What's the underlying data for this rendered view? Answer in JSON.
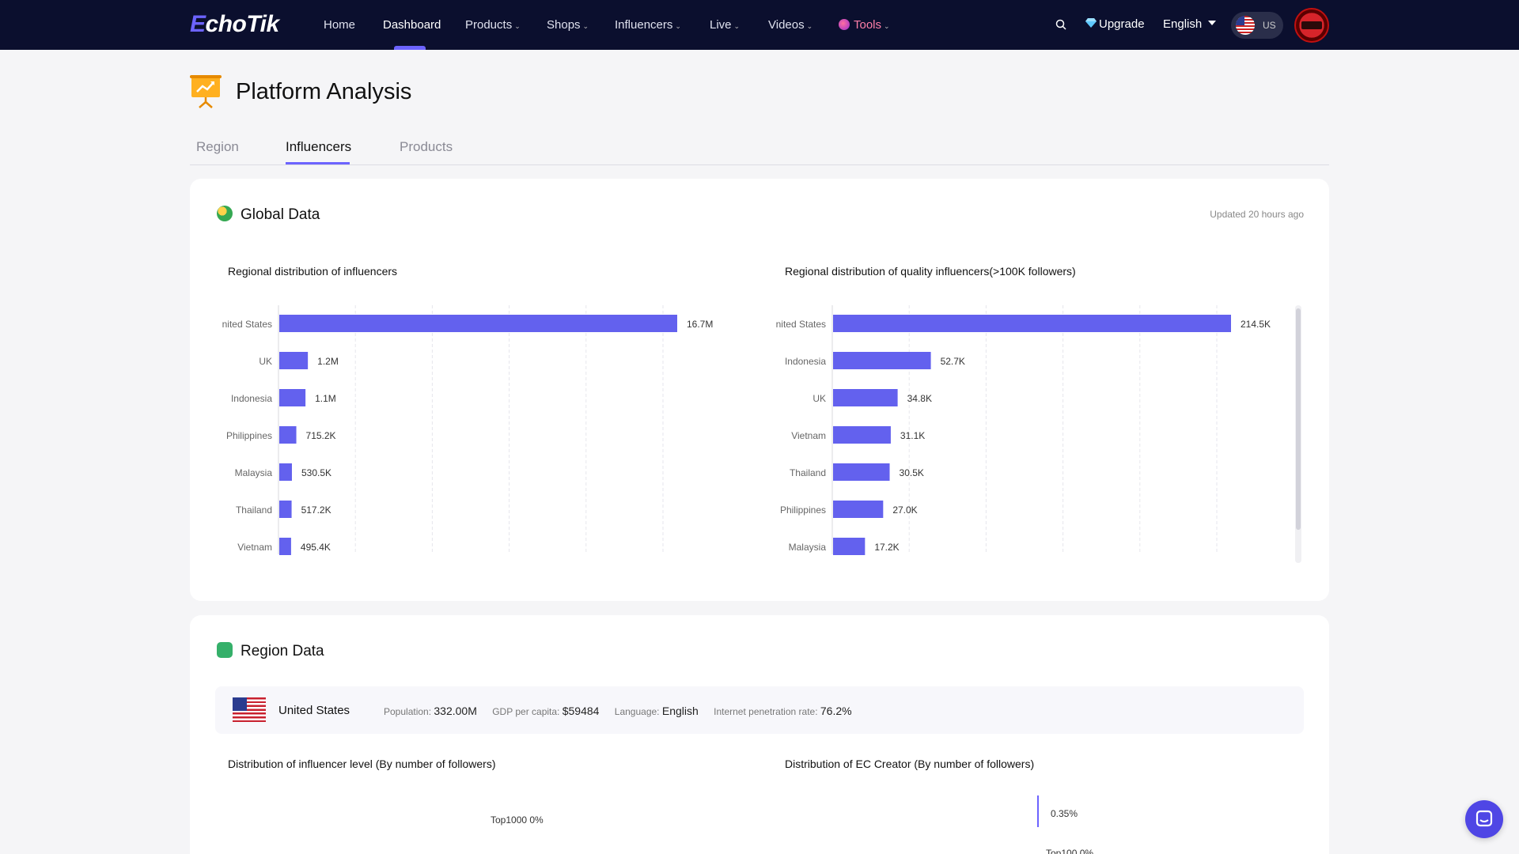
{
  "nav": {
    "logo_e": "E",
    "logo_rest": "choTik",
    "items": [
      {
        "label": "Home"
      },
      {
        "label": "Dashboard"
      },
      {
        "label": "Products"
      },
      {
        "label": "Shops"
      },
      {
        "label": "Influencers"
      },
      {
        "label": "Live"
      },
      {
        "label": "Videos"
      },
      {
        "label": "Tools"
      }
    ],
    "upgrade": "Upgrade",
    "language": "English",
    "region_code": "US"
  },
  "page": {
    "title": "Platform Analysis",
    "tabs": [
      "Region",
      "Influencers",
      "Products"
    ],
    "active_tab": "Influencers"
  },
  "global_card": {
    "title": "Global Data",
    "updated": "Updated 20 hours ago"
  },
  "region_card": {
    "title": "Region Data",
    "country": "United States",
    "population_label": "Population:",
    "population": "332.00M",
    "gdp_label": "GDP per capita:",
    "gdp": "$59484",
    "language_label": "Language:",
    "language": "English",
    "internet_label": "Internet penetration rate:",
    "internet": "76.2%",
    "chart_left_title": "Distribution of influencer level (By number of followers)",
    "chart_right_title": "Distribution of EC Creator (By number of followers)",
    "pie_left_label": "Top1000 0%",
    "pie_right_label_1": "0.35%",
    "pie_right_label_2": "Top100 0%"
  },
  "chart_data": [
    {
      "type": "bar",
      "orientation": "horizontal",
      "title": "Regional distribution of influencers",
      "categories": [
        "United States",
        "UK",
        "Indonesia",
        "Philippines",
        "Malaysia",
        "Thailand",
        "Vietnam"
      ],
      "values": [
        16700000,
        1200000,
        1100000,
        715200,
        530500,
        517200,
        495400
      ],
      "value_labels": [
        "16.7M",
        "1.2M",
        "1.1M",
        "715.2K",
        "530.5K",
        "517.2K",
        "495.4K"
      ],
      "color": "#6361ee",
      "xlim": [
        0,
        20000000
      ],
      "grid": true
    },
    {
      "type": "bar",
      "orientation": "horizontal",
      "title": "Regional distribution of quality influencers(>100K followers)",
      "categories": [
        "United States",
        "Indonesia",
        "UK",
        "Vietnam",
        "Thailand",
        "Philippines",
        "Malaysia"
      ],
      "values": [
        214500,
        52700,
        34800,
        31100,
        30500,
        27000,
        17200
      ],
      "value_labels": [
        "214.5K",
        "52.7K",
        "34.8K",
        "31.1K",
        "30.5K",
        "27.0K",
        "17.2K"
      ],
      "color": "#6361ee",
      "xlim": [
        0,
        250000
      ],
      "grid": true
    }
  ]
}
